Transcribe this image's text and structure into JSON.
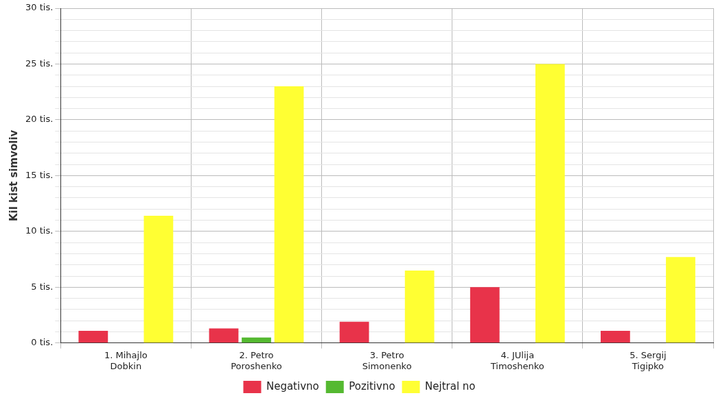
{
  "chart_data": {
    "type": "bar",
    "ylabel": "Kil kist simvoliv",
    "categories": [
      "1. Mihajlo Dobkin",
      "2. Petro Poroshenko",
      "3. Petro Simonenko",
      "4. JUlija Timoshenko",
      "5. Sergij Tigipko"
    ],
    "series": [
      {
        "name": "Negativno",
        "color": "#e8334a",
        "values": [
          1.1,
          1.3,
          1.9,
          5.0,
          1.1
        ]
      },
      {
        "name": "Pozitivno",
        "color": "#55b931",
        "values": [
          0,
          0.5,
          0,
          0,
          0
        ]
      },
      {
        "name": "Nejtral no",
        "color": "#ffff33",
        "values": [
          11.4,
          23.0,
          6.5,
          25.0,
          7.7
        ]
      }
    ],
    "ylim": [
      0,
      30
    ],
    "yticks": [
      {
        "value": 0,
        "label": "0 tis."
      },
      {
        "value": 1,
        "label": null
      },
      {
        "value": 2,
        "label": null
      },
      {
        "value": 3,
        "label": null
      },
      {
        "value": 4,
        "label": null
      },
      {
        "value": 5,
        "label": "5 tis."
      },
      {
        "value": 6,
        "label": null
      },
      {
        "value": 7,
        "label": null
      },
      {
        "value": 8,
        "label": null
      },
      {
        "value": 9,
        "label": null
      },
      {
        "value": 10,
        "label": "10 tis."
      },
      {
        "value": 11,
        "label": null
      },
      {
        "value": 12,
        "label": null
      },
      {
        "value": 13,
        "label": null
      },
      {
        "value": 14,
        "label": null
      },
      {
        "value": 15,
        "label": "15 tis."
      },
      {
        "value": 16,
        "label": null
      },
      {
        "value": 17,
        "label": null
      },
      {
        "value": 18,
        "label": null
      },
      {
        "value": 19,
        "label": null
      },
      {
        "value": 20,
        "label": "20 tis."
      },
      {
        "value": 21,
        "label": null
      },
      {
        "value": 22,
        "label": null
      },
      {
        "value": 23,
        "label": null
      },
      {
        "value": 24,
        "label": null
      },
      {
        "value": 25,
        "label": "25 tis."
      },
      {
        "value": 26,
        "label": null
      },
      {
        "value": 27,
        "label": null
      },
      {
        "value": 28,
        "label": null
      },
      {
        "value": 29,
        "label": null
      },
      {
        "value": 30,
        "label": "30 tis."
      }
    ],
    "grid": true,
    "legend": "bottom"
  }
}
